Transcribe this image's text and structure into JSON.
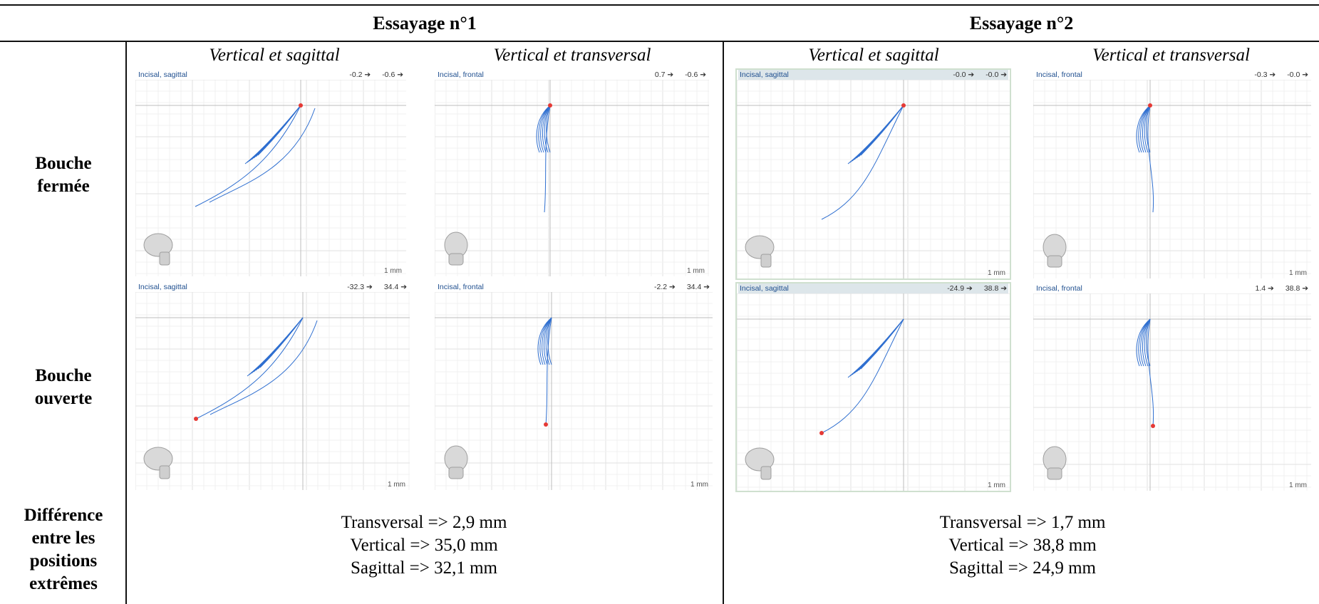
{
  "header": {
    "trial1": "Essayage n°1",
    "trial2": "Essayage n°2"
  },
  "subheaders": {
    "t1_sag": "Vertical et sagittal",
    "t1_trans": "Vertical et transversal",
    "t2_sag": "Vertical et sagittal",
    "t2_trans": "Vertical et transversal"
  },
  "rows": {
    "closed": [
      "Bouche",
      "fermée"
    ],
    "open": [
      "Bouche",
      "ouverte"
    ],
    "diff": [
      "Différence",
      "entre les",
      "positions",
      "extrêmes"
    ]
  },
  "scale_label": "1 mm",
  "colors": {
    "trace": "#2f6fd0",
    "point": "#e53935",
    "title": "#1f4f8f"
  },
  "panels": [
    {
      "id": "t1-closed-sag",
      "title": "Incisal, sagittal",
      "v1": "-0.2 ➔",
      "v2": "-0.6 ➔",
      "view": "sagittal",
      "point": "top",
      "icon": "skull-side-icon"
    },
    {
      "id": "t1-closed-front",
      "title": "Incisal, frontal",
      "v1": "0.7 ➔",
      "v2": "-0.6 ➔",
      "view": "frontal",
      "point": "top",
      "icon": "skull-front-icon"
    },
    {
      "id": "t2-closed-sag",
      "title": "Incisal, sagittal",
      "v1": "-0.0 ➔",
      "v2": "-0.0 ➔",
      "view": "sagittal",
      "point": "top",
      "icon": "skull-side-icon"
    },
    {
      "id": "t2-closed-front",
      "title": "Incisal, frontal",
      "v1": "-0.3 ➔",
      "v2": "-0.0 ➔",
      "view": "frontal",
      "point": "top",
      "icon": "skull-front-icon"
    },
    {
      "id": "t1-open-sag",
      "title": "Incisal, sagittal",
      "v1": "-32.3 ➔",
      "v2": "34.4 ➔",
      "view": "sagittal",
      "point": "bottom",
      "icon": "skull-side-icon"
    },
    {
      "id": "t1-open-front",
      "title": "Incisal, frontal",
      "v1": "-2.2 ➔",
      "v2": "34.4 ➔",
      "view": "frontal",
      "point": "bottom",
      "icon": "skull-front-icon"
    },
    {
      "id": "t2-open-sag",
      "title": "Incisal, sagittal",
      "v1": "-24.9 ➔",
      "v2": "38.8 ➔",
      "view": "sagittal",
      "point": "bottom",
      "icon": "skull-side-icon"
    },
    {
      "id": "t2-open-front",
      "title": "Incisal, frontal",
      "v1": "1.4 ➔",
      "v2": "38.8 ➔",
      "view": "frontal",
      "point": "bottom",
      "icon": "skull-front-icon"
    }
  ],
  "diff1": [
    "Transversal => 2,9 mm",
    "Vertical => 35,0 mm",
    "Sagittal => 32,1 mm"
  ],
  "diff2": [
    "Transversal => 1,7 mm",
    "Vertical => 38,8 mm",
    "Sagittal => 24,9 mm"
  ]
}
